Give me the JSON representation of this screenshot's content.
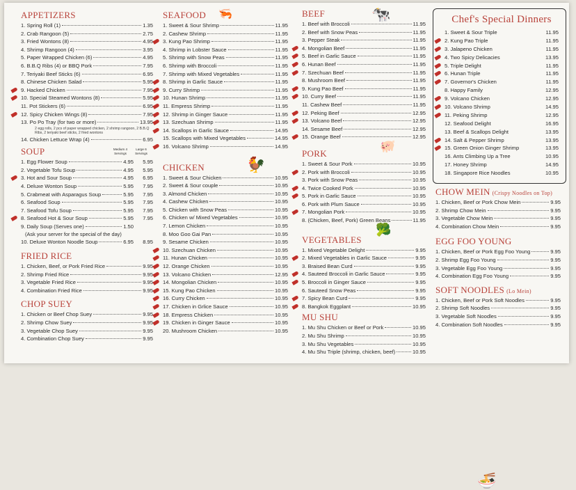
{
  "colors": {
    "heading": "#b8423a",
    "spicy": "#c0302a"
  },
  "appetizers": {
    "title": "APPETIZERS",
    "items": [
      {
        "n": "1. Spring Roll (1)",
        "p": "1.35"
      },
      {
        "n": "2. Crab Rangoon (5)",
        "p": "2.75"
      },
      {
        "n": "3. Fried Wontons (8)",
        "p": "4.95"
      },
      {
        "n": "4. Shrimp Rangoon (4)",
        "p": "3.95"
      },
      {
        "n": "5. Paper Wrapped Chicken (6)",
        "p": "4.95"
      },
      {
        "n": "6. B.B.Q Ribs (4) or BBQ Pork",
        "p": "7.95"
      },
      {
        "n": "7. Teriyaki Beef Sticks (6)",
        "p": "6.95"
      },
      {
        "n": "8. Chinese Chicken Salad",
        "p": "5.95"
      },
      {
        "n": "9. Hacked Chicken",
        "p": "7.95",
        "s": true
      },
      {
        "n": "10. Special Steamed Wontons (8)",
        "p": "5.95",
        "s": true
      },
      {
        "n": "11. Pot Stickers (6)",
        "p": "6.95"
      },
      {
        "n": "12. Spicy Chicken Wings (8)",
        "p": "7.95",
        "s": true
      },
      {
        "n": "13. Po Po Tray (for two or more)",
        "p": "13.95",
        "note": "2 egg rolls, 2 pcs of paper wrapped chicken, 2 shrimp rangoon, 2 B.B.Q Ribs, 2 teriyaki beef sticks, 2 fried wontons"
      },
      {
        "n": "14. Chicken Lettuce Wrap (4)",
        "p": "6.95"
      }
    ]
  },
  "soup": {
    "title": "SOUP",
    "medium": "Medium 4 Servings",
    "large": "Large 6 Servings",
    "items": [
      {
        "n": "1. Egg Flower Soup",
        "p": "4.95",
        "p2": "5.95"
      },
      {
        "n": "2. Vegetable Tofu Soup",
        "p": "4.95",
        "p2": "5.95"
      },
      {
        "n": "3. Hot and Sour Soup",
        "p": "4.95",
        "p2": "6.95",
        "s": true
      },
      {
        "n": "4. Deluxe Wonton Soup",
        "p": "5.95",
        "p2": "7.95"
      },
      {
        "n": "5. Crabmeat with Asparagus Soup",
        "p": "5.95",
        "p2": "7.95"
      },
      {
        "n": "6. Seafood Soup",
        "p": "5.95",
        "p2": "7.95"
      },
      {
        "n": "7. Seafood Tofu Soup",
        "p": "5.95",
        "p2": "7.95"
      },
      {
        "n": "8. Seafood Hot & Sour Soup",
        "p": "5.95",
        "p2": "7.95",
        "s": true
      },
      {
        "n": "9. Daily Soup (Serves one)",
        "p": "1.50",
        "p2": "",
        "note2": "(Ask your server for the special of the day)"
      },
      {
        "n": "10. Deluxe Wonton Noodle Soup",
        "p": "6.95",
        "p2": "8.95"
      }
    ]
  },
  "fried_rice": {
    "title": "FRIED RICE",
    "items": [
      {
        "n": "1. Chicken, Beef, or Pork Fried Rice",
        "p": "9.95"
      },
      {
        "n": "2. Shrimp Fried Rice",
        "p": "9.95"
      },
      {
        "n": "3. Vegetable Fried Rice",
        "p": "9.95"
      },
      {
        "n": "4. Combination Fried Rice",
        "p": "9.95"
      }
    ]
  },
  "chop_suey": {
    "title": "CHOP SUEY",
    "items": [
      {
        "n": "1. Chicken or Beef Chop Suey",
        "p": "9.95"
      },
      {
        "n": "2. Shrimp Chow Suey",
        "p": "9.95"
      },
      {
        "n": "3. Vegetable Chop Suey",
        "p": "9.95"
      },
      {
        "n": "4. Combination Chop Suey",
        "p": "9.95"
      }
    ]
  },
  "seafood": {
    "title": "SEAFOOD",
    "items": [
      {
        "n": "1. Sweet & Sour Shrimp",
        "p": "11.95"
      },
      {
        "n": "2. Cashew Shrimp",
        "p": "11.95"
      },
      {
        "n": "3. Kung Pao Shrimp",
        "p": "11.95",
        "s": true
      },
      {
        "n": "4. Shrimp in Lobster Sauce",
        "p": "11.95"
      },
      {
        "n": "5. Shrimp with Snow Peas",
        "p": "11.95"
      },
      {
        "n": "6. Shrimp with Broccoli",
        "p": "11.95"
      },
      {
        "n": "7. Shrimp with Mixed Vegetables",
        "p": "11.95"
      },
      {
        "n": "8. Shrimp in Garlic Sauce",
        "p": "11.95",
        "s": true
      },
      {
        "n": "9. Curry Shrimp",
        "p": "11.95",
        "s": true
      },
      {
        "n": "10. Hunan Shrimp",
        "p": "11.95",
        "s": true
      },
      {
        "n": "11. Empress Shrimp",
        "p": "11.95",
        "s": true
      },
      {
        "n": "12. Shrimp in Ginger Sauce",
        "p": "11.95",
        "s": true
      },
      {
        "n": "13. Szechuan Shrimp",
        "p": "11.95",
        "s": true
      },
      {
        "n": "14. Scallops in Garlic Sauce",
        "p": "14.95",
        "s": true
      },
      {
        "n": "15. Scallops with Mixed Vegetables",
        "p": "14.95"
      },
      {
        "n": "16. Volcano Shrimp",
        "p": "14.95",
        "s": true
      }
    ]
  },
  "chicken": {
    "title": "CHICKEN",
    "items": [
      {
        "n": "1. Sweet & Sour Chicken",
        "p": "10.95"
      },
      {
        "n": "2. Sweet & Sour couple",
        "p": "10.95"
      },
      {
        "n": "3. Almond Chicken",
        "p": "10.95"
      },
      {
        "n": "4. Cashew Chicken",
        "p": "10.95"
      },
      {
        "n": "5. Chicken with Snow Peas",
        "p": "10.95"
      },
      {
        "n": "6. Chicken w/ Mixed Vegetables",
        "p": "10.95"
      },
      {
        "n": "7. Lemon Chicken",
        "p": "10.95"
      },
      {
        "n": "8. Moo Goo Gai Pan",
        "p": "10.95"
      },
      {
        "n": "9. Sesame Chicken",
        "p": "10.95"
      },
      {
        "n": "10. Szechuan Chicken",
        "p": "10.95",
        "s": true
      },
      {
        "n": "11. Hunan Chicken",
        "p": "10.95",
        "s": true
      },
      {
        "n": "12. Orange Chicken",
        "p": "10.95",
        "s": true
      },
      {
        "n": "13. Volcano Chicken",
        "p": "12.95",
        "s": true
      },
      {
        "n": "14. Mongolian Chicken",
        "p": "10.95",
        "s": true
      },
      {
        "n": "15. Kung Pao Chicken",
        "p": "10.95",
        "s": true
      },
      {
        "n": "16. Curry Chicken",
        "p": "10.95",
        "s": true
      },
      {
        "n": "17. Chicken in Grlice Sauce",
        "p": "10.95",
        "s": true
      },
      {
        "n": "18. Empress Chicken",
        "p": "10.95",
        "s": true
      },
      {
        "n": "19. Chicken in Ginger Sauce",
        "p": "10.95",
        "s": true
      },
      {
        "n": "20. Mushroom Chicken",
        "p": "10.95"
      }
    ]
  },
  "beef": {
    "title": "BEEF",
    "items": [
      {
        "n": "1. Beef with Broccoli",
        "p": "11.95"
      },
      {
        "n": "2. Beef with Snow Peas",
        "p": "11.95"
      },
      {
        "n": "3. Pepper Steak",
        "p": "11.95"
      },
      {
        "n": "4. Mongolian Beef",
        "p": "11.95",
        "s": true
      },
      {
        "n": "5. Beef in Garlic Sauce",
        "p": "11.95",
        "s": true
      },
      {
        "n": "6. Hunan Beef",
        "p": "11.95",
        "s": true
      },
      {
        "n": "7. Szechuan Beef",
        "p": "11.95",
        "s": true
      },
      {
        "n": "8. Mushroom Beef",
        "p": "11.95"
      },
      {
        "n": "9. Kung Pao Beef",
        "p": "11.95",
        "s": true
      },
      {
        "n": "10. Curry Beef",
        "p": "11.95",
        "s": true
      },
      {
        "n": "11. Cashew Beef",
        "p": "11.95"
      },
      {
        "n": "12. Peking Beef",
        "p": "12.95",
        "s": true
      },
      {
        "n": "13. Volcano Beef",
        "p": "12.95",
        "s": true
      },
      {
        "n": "14. Sesame Beef",
        "p": "12.95"
      },
      {
        "n": "15. Orange Beef",
        "p": "12.95",
        "s": true
      }
    ]
  },
  "pork": {
    "title": "PORK",
    "items": [
      {
        "n": "1. Sweet & Sour Pork",
        "p": "10.95"
      },
      {
        "n": "2. Pork with Broccoli",
        "p": "10.95",
        "s": true
      },
      {
        "n": "3. Pork with Snow Peas",
        "p": "10.95"
      },
      {
        "n": "4. Twice Cooked Pork",
        "p": "10.95",
        "s": true
      },
      {
        "n": "5. Pork in Garlic Sauce",
        "p": "10.95",
        "s": true
      },
      {
        "n": "6. Pork with Plum Sauce",
        "p": "10.95"
      },
      {
        "n": "7. Mongolian Pork",
        "p": "10.95",
        "s": true
      },
      {
        "n": "8. (Chicken, Beef, Pork) Green Beans",
        "p": "11.95"
      }
    ]
  },
  "vegetables": {
    "title": "VEGETABLES",
    "items": [
      {
        "n": "1. Mixed Vegetable Delight",
        "p": "9.95"
      },
      {
        "n": "2. Mixed Vegetables in Garlic Sauce",
        "p": "9.95",
        "s": true
      },
      {
        "n": "3. Braised Bean Curd",
        "p": "9.95"
      },
      {
        "n": "4. Sauteed Broccoli in Garlic Sauce",
        "p": "9.95",
        "s": true
      },
      {
        "n": "5. Broccoli in Ginger Sauce",
        "p": "9.95",
        "s": true
      },
      {
        "n": "6. Sauteed Snow Peas",
        "p": "9.95"
      },
      {
        "n": "7. Spicy Bean Curd",
        "p": "9.95",
        "s": true
      },
      {
        "n": "8. Bangkok Eggplant",
        "p": "10.95",
        "s": true
      }
    ]
  },
  "mu_shu": {
    "title": "MU SHU",
    "items": [
      {
        "n": "1. Mu Shu Chicken or Beef or Pork",
        "p": "10.95"
      },
      {
        "n": "2. Mu Shu Shrimp",
        "p": "10.95"
      },
      {
        "n": "3. Mu Shu Vegetables",
        "p": "10.95"
      },
      {
        "n": "4. Mu Shu Triple (shrimp, chicken, beef)",
        "p": "10.95"
      }
    ]
  },
  "chefs_special": {
    "title": "Chef's Special Dinners",
    "items": [
      {
        "n": "1. Sweet & Sour Triple",
        "p": "11.95"
      },
      {
        "n": "2. Kung Pao Triple",
        "p": "11.95",
        "s": true
      },
      {
        "n": "3. Jalapeno Chicken",
        "p": "11.95",
        "s": true
      },
      {
        "n": "4. Two Spicy Delicacies",
        "p": "13.95",
        "s": true
      },
      {
        "n": "5. Triple Delight",
        "p": "11.95",
        "s": true
      },
      {
        "n": "6. Hunan Triple",
        "p": "11.95",
        "s": true
      },
      {
        "n": "7. Governor's Chicken",
        "p": "11.95",
        "s": true
      },
      {
        "n": "8. Happy Family",
        "p": "12.95"
      },
      {
        "n": "9. Volcano Chicken",
        "p": "12.95",
        "s": true
      },
      {
        "n": "10. Volcano Shrimp",
        "p": "14.95",
        "s": true
      },
      {
        "n": "11. Peking Shrimp",
        "p": "12.95",
        "s": true
      },
      {
        "n": "12. Seafood Delight",
        "p": "16.95"
      },
      {
        "n": "13. Beef & Scallops Delight",
        "p": "13.95"
      },
      {
        "n": "14. Salt & Pepper Shrimp",
        "p": "13.95",
        "s": true
      },
      {
        "n": "15. Green Onion Ginger Shrimp",
        "p": "13.95",
        "s": true
      },
      {
        "n": "16. Ants Climbing Up a Tree",
        "p": "10.95"
      },
      {
        "n": "17. Honey Shrimp",
        "p": "14.95"
      },
      {
        "n": "18. Singapore Rice Noodles",
        "p": "10.95"
      }
    ]
  },
  "chow_mein": {
    "title": "CHOW MEIN",
    "subtitle": "(Crispy Noodles on Top)",
    "items": [
      {
        "n": "1. Chicken, Beef or Pork Chow Mein",
        "p": "9.95"
      },
      {
        "n": "2. Shrimp Chow Mein",
        "p": "9.95"
      },
      {
        "n": "3. Vegetable Chow Mein",
        "p": "9.95"
      },
      {
        "n": "4. Combination Chow Mein",
        "p": "9.95"
      }
    ]
  },
  "egg_foo_young": {
    "title": "EGG FOO YOUNG",
    "items": [
      {
        "n": "1. Chicken, Beef or Pork Egg Foo Young",
        "p": "9.95"
      },
      {
        "n": "2. Shrimp Egg Foo Young",
        "p": "9.95"
      },
      {
        "n": "3. Vegetable Egg Foo Young",
        "p": "9.95"
      },
      {
        "n": "4. Combination Egg Foo Young",
        "p": "9.95"
      }
    ]
  },
  "soft_noodles": {
    "title": "SOFT NOODLES",
    "subtitle": "(Lo Mein)",
    "items": [
      {
        "n": "1. Chicken, Beef or Pork Soft Noodles",
        "p": "9.95"
      },
      {
        "n": "2. Shrimp Soft Noodles",
        "p": "9.95"
      },
      {
        "n": "3. Vegetable Soft Noodles",
        "p": "9.95"
      },
      {
        "n": "4. Combination Soft Noodles",
        "p": "9.95"
      }
    ]
  }
}
